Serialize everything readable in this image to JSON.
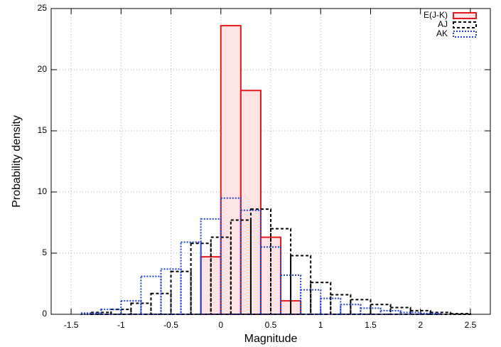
{
  "chart_data": {
    "type": "histogram",
    "x_label": "Magnitude",
    "y_label": "Probability density",
    "xlim": [
      -1.7,
      2.7
    ],
    "ylim": [
      0,
      25
    ],
    "xticks": [
      -1.5,
      -1,
      -0.5,
      0,
      0.5,
      1,
      1.5,
      2,
      2.5
    ],
    "yticks": [
      0,
      5,
      10,
      15,
      20,
      25
    ],
    "grid": true,
    "legend": "top-right",
    "series": [
      {
        "name": "E(J-K)",
        "color": "#e41a1c",
        "fill": "#fde3e3",
        "dash": "none",
        "bins": [
          -0.2,
          0,
          0.2,
          0.4,
          0.6,
          0.8
        ],
        "values": [
          4.7,
          23.6,
          18.3,
          6.3,
          1.1
        ]
      },
      {
        "name": "AJ",
        "color": "#000000",
        "fill": "none",
        "dash": "4,3",
        "bins": [
          -1.3,
          -1.1,
          -0.9,
          -0.7,
          -0.5,
          -0.3,
          -0.1,
          0.1,
          0.3,
          0.5,
          0.7,
          0.9,
          1.1,
          1.3,
          1.5,
          1.7,
          1.9,
          2.1,
          2.3,
          2.5
        ],
        "values": [
          0.15,
          0.4,
          0.9,
          1.7,
          3.5,
          5.8,
          6.3,
          7.7,
          8.6,
          7.0,
          4.8,
          2.6,
          1.6,
          1.2,
          0.8,
          0.55,
          0.3,
          0.15,
          0.05
        ]
      },
      {
        "name": "AK",
        "color": "#1f3fd6",
        "fill": "none",
        "dash": "2,2",
        "bins": [
          -1.4,
          -1.2,
          -1.0,
          -0.8,
          -0.6,
          -0.4,
          -0.2,
          0,
          0.2,
          0.4,
          0.6,
          0.8,
          1.0,
          1.2,
          1.4,
          1.6,
          1.8,
          2.0,
          2.2
        ],
        "values": [
          0.1,
          0.4,
          1.1,
          3.1,
          3.7,
          5.9,
          7.8,
          9.5,
          8.5,
          5.5,
          3.2,
          2.0,
          1.3,
          0.8,
          0.5,
          0.3,
          0.15,
          0.08
        ]
      }
    ]
  }
}
